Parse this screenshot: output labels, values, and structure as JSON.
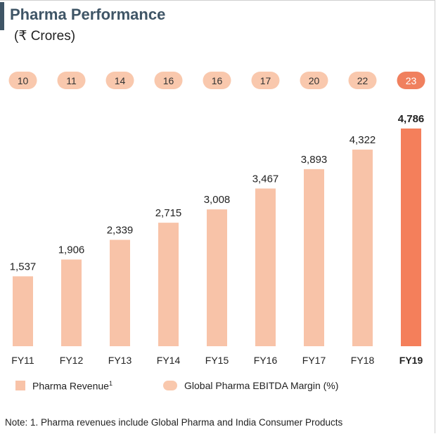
{
  "title": "Pharma Performance",
  "subtitle": "(₹ Crores)",
  "note": "Note: 1. Pharma revenues include Global Pharma and India Consumer Products",
  "colors": {
    "bar": "#f8c3a8",
    "bar_highlight": "#f47f5b",
    "pill": "#f9c8ad",
    "pill_highlight": "#f0805e",
    "title": "#3f5566"
  },
  "chart_data": {
    "type": "bar",
    "categories": [
      "FY11",
      "FY12",
      "FY13",
      "FY14",
      "FY15",
      "FY16",
      "FY17",
      "FY18",
      "FY19"
    ],
    "series": [
      {
        "name": "Pharma Revenue¹",
        "values": [
          1537,
          1906,
          2339,
          2715,
          3008,
          3467,
          3893,
          4322,
          4786
        ]
      }
    ],
    "value_labels": [
      "1,537",
      "1,906",
      "2,339",
      "2,715",
      "3,008",
      "3,467",
      "3,893",
      "4,322",
      "4,786"
    ],
    "ebitda_margin": {
      "name": "Global Pharma EBITDA Margin (%)",
      "values": [
        10,
        11,
        14,
        16,
        16,
        17,
        20,
        22,
        23
      ]
    },
    "highlight_index": 8,
    "title": "Pharma Performance",
    "ylabel": "",
    "ylim": [
      0,
      4786
    ],
    "grid": false,
    "legend_position": "bottom"
  },
  "legend": {
    "revenue_label": "Pharma Revenue",
    "revenue_sup": "1",
    "margin_label": "Global Pharma EBITDA Margin (%)"
  }
}
